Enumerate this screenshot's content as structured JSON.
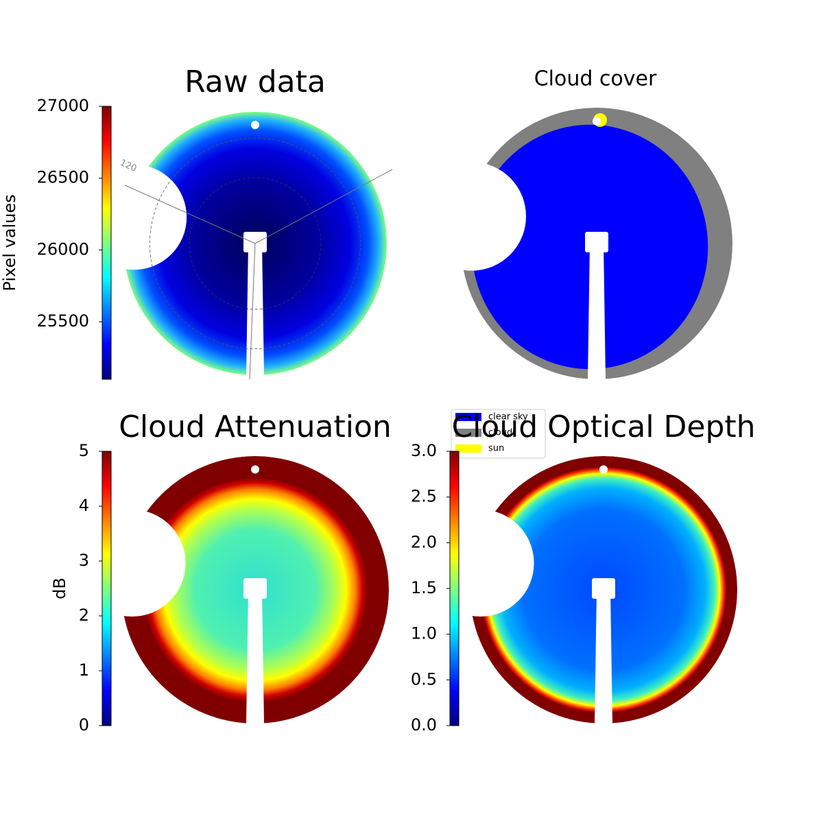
{
  "chart_data": [
    {
      "type": "image",
      "title": "Raw data",
      "colormap": "jet",
      "colorbar_label": "Pixel values",
      "clim": [
        25100,
        27000
      ],
      "cticks": [
        25500,
        26000,
        26500,
        27000
      ],
      "annotations": [
        "120"
      ]
    },
    {
      "type": "image",
      "title": "Cloud cover",
      "legend": [
        {
          "name": "clear sky",
          "color": "#0000ff"
        },
        {
          "name": "cloud",
          "color": "#808080"
        },
        {
          "name": "sun",
          "color": "#ffff00"
        }
      ]
    },
    {
      "type": "image",
      "title": "Cloud Attenuation",
      "colormap": "jet",
      "colorbar_label": "dB",
      "clim": [
        0,
        5
      ],
      "cticks": [
        0,
        1,
        2,
        3,
        4,
        5
      ]
    },
    {
      "type": "image",
      "title": "Cloud Optical Depth",
      "colormap": "jet",
      "clim": [
        0,
        3
      ],
      "cticks": [
        {
          "value": 0,
          "label": "0.0"
        },
        {
          "value": 0.5,
          "label": "0.5"
        },
        {
          "value": 1,
          "label": "1.0"
        },
        {
          "value": 1.5,
          "label": "1.5"
        },
        {
          "value": 2,
          "label": "2.0"
        },
        {
          "value": 2.5,
          "label": "2.5"
        },
        {
          "value": 3,
          "label": "3.0"
        }
      ]
    }
  ]
}
